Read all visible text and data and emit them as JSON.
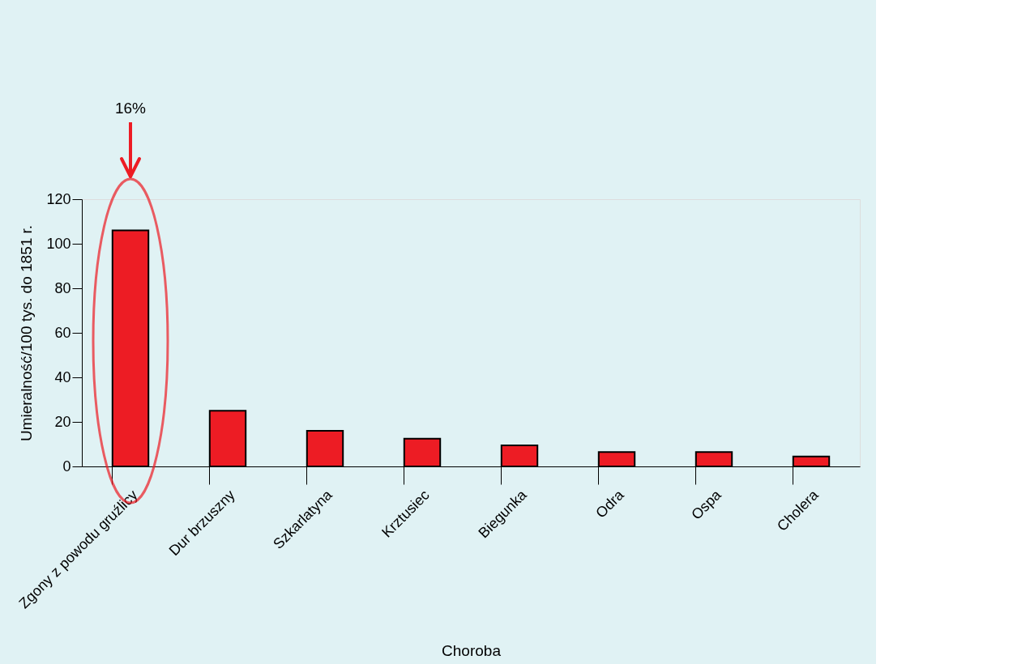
{
  "chart_data": {
    "type": "bar",
    "xlabel": "Choroba",
    "ylabel": "Umieralność/100 tys. do 1851 r.",
    "categories": [
      "Zgony z powodu gruźlicy",
      "Dur brzuszny",
      "Szkarlatyna",
      "Krztusiec",
      "Biegunka",
      "Odra",
      "Ospa",
      "Cholera"
    ],
    "values": [
      106,
      25,
      16,
      12.5,
      9.5,
      6.5,
      6.5,
      4.5
    ],
    "color": "#ed1c24",
    "ylim": [
      0,
      120
    ],
    "yticks": [
      0,
      20,
      40,
      60,
      80,
      100,
      120
    ],
    "grid": false,
    "annotations": [
      "16%"
    ]
  }
}
